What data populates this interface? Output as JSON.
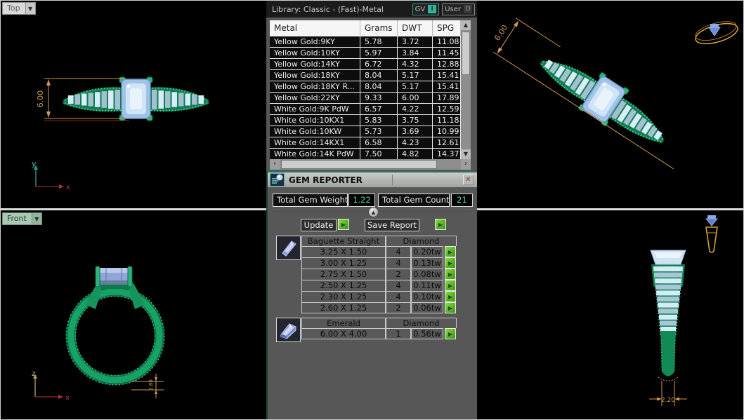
{
  "viewports": {
    "top_left": {
      "label": "Top",
      "dimension": "6.00",
      "axis_v": "y",
      "axis_h": "x"
    },
    "top_right": {
      "dimension": "6.00"
    },
    "bottom_left": {
      "label": "Front",
      "dimension": "1.80",
      "axis_v": "z",
      "axis_h": "x"
    },
    "bottom_right": {
      "dimension": "2.20"
    }
  },
  "metal_panel": {
    "title": "Library: Classic - (Fast)-Metal",
    "gv_toggle": {
      "label": "GV",
      "state": "I"
    },
    "user_toggle": {
      "label": "User",
      "state": "O"
    },
    "columns": [
      "Metal",
      "Grams",
      "DWT",
      "SPG"
    ],
    "rows": [
      [
        "Yellow Gold:9KY",
        "5.78",
        "3.72",
        "11.08"
      ],
      [
        "Yellow Gold:10KY",
        "5.97",
        "3.84",
        "11.45"
      ],
      [
        "Yellow Gold:14KY",
        "6.72",
        "4.32",
        "12.88"
      ],
      [
        "Yellow Gold:18KY",
        "8.04",
        "5.17",
        "15.41"
      ],
      [
        "Yellow Gold:18KY R...",
        "8.04",
        "5.17",
        "15.41"
      ],
      [
        "Yellow Gold:22KY",
        "9.33",
        "6.00",
        "17.89"
      ],
      [
        "White Gold:9K PdW",
        "6.57",
        "4.22",
        "12.59"
      ],
      [
        "White Gold:10KX1",
        "5.83",
        "3.75",
        "11.18"
      ],
      [
        "White Gold:10KW",
        "5.73",
        "3.69",
        "10.99"
      ],
      [
        "White Gold:14KX1",
        "6.58",
        "4.23",
        "12.61"
      ],
      [
        "White Gold:14K PdW",
        "7.50",
        "4.82",
        "14.37"
      ]
    ]
  },
  "gem_reporter": {
    "title": "GEM REPORTER",
    "close_glyph": "✕",
    "total_weight_label": "Total Gem Weight",
    "total_weight": "1.22",
    "total_count_label": "Total Gem Count",
    "total_count": "21",
    "update_label": "Update",
    "save_label": "Save Report",
    "groups": [
      {
        "shape": "Baguette Straight",
        "material": "Diamond",
        "icon": "baguette-gem-icon",
        "rows": [
          {
            "size": "3.25 X 1.50",
            "count": "4",
            "weight": "0.20tw"
          },
          {
            "size": "3.00 X 1.25",
            "count": "4",
            "weight": "0.13tw"
          },
          {
            "size": "2.75 X 1.50",
            "count": "2",
            "weight": "0.08tw"
          },
          {
            "size": "2.50 X 1.25",
            "count": "4",
            "weight": "0.11tw"
          },
          {
            "size": "2.30 X 1.25",
            "count": "4",
            "weight": "0.10tw"
          },
          {
            "size": "2.60 X 1.25",
            "count": "2",
            "weight": "0.06tw"
          }
        ]
      },
      {
        "shape": "Emerald",
        "material": "Diamond",
        "icon": "emerald-gem-icon",
        "rows": [
          {
            "size": "6.00 X 4.00",
            "count": "1",
            "weight": "0.56tw"
          }
        ]
      }
    ]
  },
  "colors": {
    "accent_teal": "#35b39c",
    "value_teal": "#43d9b5",
    "dimension_tan": "#d09a4f",
    "band_green": "#117c50",
    "go_green": "#4ea51e",
    "gold": "#d4a040"
  }
}
